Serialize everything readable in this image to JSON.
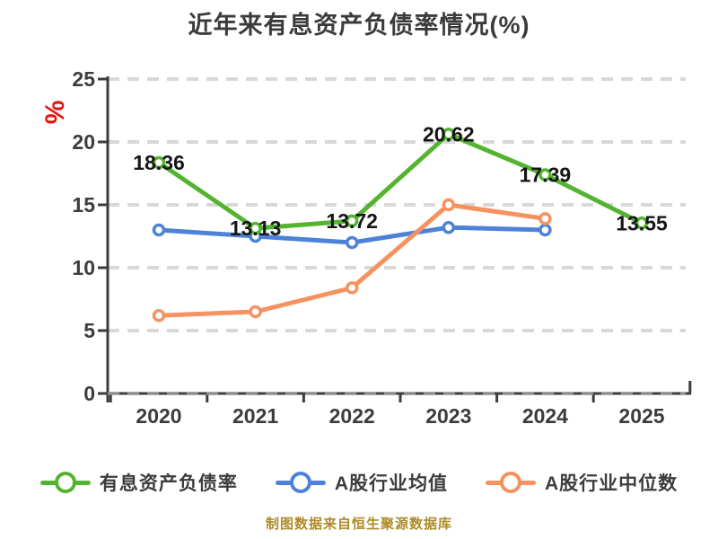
{
  "title": "近年来有息资产负债率情况(%)",
  "y_axis_unit_label": "%",
  "footer": "制图数据来自恒生聚源数据库",
  "colors": {
    "title_text": "#3b3b3b",
    "axis": "#3d3d3d",
    "tick_label": "#3c3c3c",
    "gridline": "#d8d8d8",
    "axis_dash_overlay": "#8e8e8e",
    "data_label": "#161616",
    "unit_label_red": "#e8120f",
    "footer_text": "#ae8a28",
    "series_green": "#55b42f",
    "series_blue": "#4d82d8",
    "series_orange": "#f69260"
  },
  "chart_data": {
    "type": "line",
    "title": "近年来有息资产负债率情况(%)",
    "categories": [
      "2020",
      "2021",
      "2022",
      "2023",
      "2024",
      "2025"
    ],
    "series": [
      {
        "name": "有息资产负债率",
        "color": "#55b42f",
        "values": [
          18.36,
          13.13,
          13.72,
          20.62,
          17.39,
          13.55
        ],
        "labels": [
          "18.36",
          "13.13",
          "13.72",
          "20.62",
          "17.39",
          "13.55"
        ],
        "show_labels": true
      },
      {
        "name": "A股行业均值",
        "color": "#4d82d8",
        "values": [
          13.0,
          12.5,
          12.0,
          13.2,
          13.0,
          null
        ],
        "show_labels": false
      },
      {
        "name": "A股行业中位数",
        "color": "#f69260",
        "values": [
          6.2,
          6.5,
          8.4,
          15.0,
          13.9,
          null
        ],
        "show_labels": false
      }
    ],
    "xlabel": "",
    "ylabel": "%",
    "ylim": [
      0,
      25
    ],
    "yticks": [
      0,
      5,
      10,
      15,
      20,
      25
    ],
    "grid": "horizontal dashed",
    "legend_position": "bottom",
    "marker_style": "white-filled circle with colored ring"
  }
}
